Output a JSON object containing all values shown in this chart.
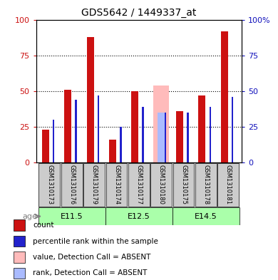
{
  "title": "GDS5642 / 1449337_at",
  "samples": [
    "GSM1310173",
    "GSM1310176",
    "GSM1310179",
    "GSM1310174",
    "GSM1310177",
    "GSM1310180",
    "GSM1310175",
    "GSM1310178",
    "GSM1310181"
  ],
  "age_groups": [
    {
      "label": "E11.5",
      "indices": [
        0,
        1,
        2
      ]
    },
    {
      "label": "E12.5",
      "indices": [
        3,
        4,
        5
      ]
    },
    {
      "label": "E14.5",
      "indices": [
        6,
        7,
        8
      ]
    }
  ],
  "count_values": [
    23,
    51,
    88,
    16,
    50,
    0,
    36,
    47,
    92
  ],
  "percentile_values": [
    30,
    44,
    47,
    25,
    39,
    35,
    35,
    39,
    46
  ],
  "absent_value_bars": [
    0,
    0,
    0,
    0,
    0,
    54,
    0,
    0,
    0
  ],
  "absent_rank_bars": [
    0,
    0,
    0,
    0,
    0,
    35,
    0,
    0,
    0
  ],
  "count_color": "#cc1111",
  "percentile_color": "#2222cc",
  "absent_value_color": "#ffbbbb",
  "absent_rank_color": "#aabbff",
  "ylim": [
    0,
    100
  ],
  "yticks": [
    0,
    25,
    50,
    75,
    100
  ],
  "grid_color": "#000000",
  "bg_color": "#ffffff",
  "label_bg_color": "#cccccc",
  "age_bg_color": "#aaffaa",
  "legend_items": [
    {
      "color": "#cc1111",
      "label": "count"
    },
    {
      "color": "#2222cc",
      "label": "percentile rank within the sample"
    },
    {
      "color": "#ffbbbb",
      "label": "value, Detection Call = ABSENT"
    },
    {
      "color": "#aabbff",
      "label": "rank, Detection Call = ABSENT"
    }
  ]
}
